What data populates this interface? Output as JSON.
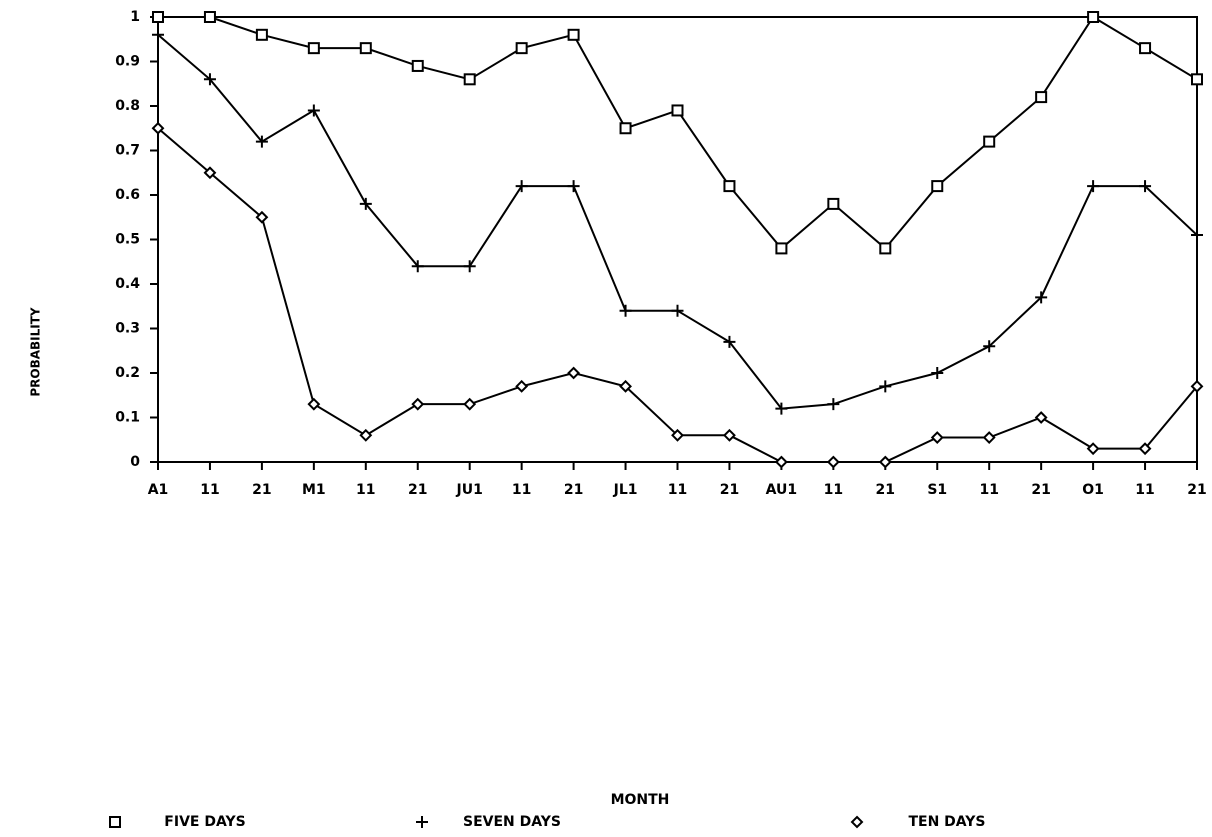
{
  "chart_data": {
    "type": "line",
    "x_label": "MONTH",
    "y_label": "PROBABILITY",
    "categories": [
      "A1",
      "11",
      "21",
      "M1",
      "11",
      "21",
      "JU1",
      "11",
      "21",
      "JL1",
      "11",
      "21",
      "AU1",
      "11",
      "21",
      "S1",
      "11",
      "21",
      "O1",
      "11",
      "21"
    ],
    "series": [
      {
        "name": "FIVE DAYS",
        "color": "#000000",
        "marker": "square",
        "values": [
          1,
          1,
          0.96,
          0.93,
          0.93,
          0.89,
          0.86,
          0.93,
          0.96,
          0.75,
          0.79,
          0.62,
          0.48,
          0.58,
          0.48,
          0.62,
          0.72,
          0.82,
          1,
          0.93,
          0.86
        ]
      },
      {
        "name": "SEVEN DAYS",
        "color": "#000000",
        "marker": "plus",
        "values": [
          0.96,
          0.86,
          0.72,
          0.79,
          0.58,
          0.44,
          0.44,
          0.62,
          0.62,
          0.34,
          0.34,
          0.27,
          0.12,
          0.13,
          0.17,
          0.2,
          0.26,
          0.37,
          0.62,
          0.62,
          0.51
        ]
      },
      {
        "name": "TEN DAYS",
        "color": "#000000",
        "marker": "diamond",
        "values": [
          0.75,
          0.65,
          0.55,
          0.13,
          0.06,
          0.13,
          0.13,
          0.17,
          0.2,
          0.17,
          0.06,
          0.06,
          0,
          0,
          0,
          0.055,
          0.055,
          0.1,
          0.03,
          0.03,
          0.17
        ]
      }
    ],
    "ylim": [
      0,
      1
    ],
    "yticks": [
      0,
      0.1,
      0.2,
      0.3,
      0.4,
      0.5,
      0.6,
      0.7,
      0.8,
      0.9,
      1
    ],
    "grid": false
  }
}
